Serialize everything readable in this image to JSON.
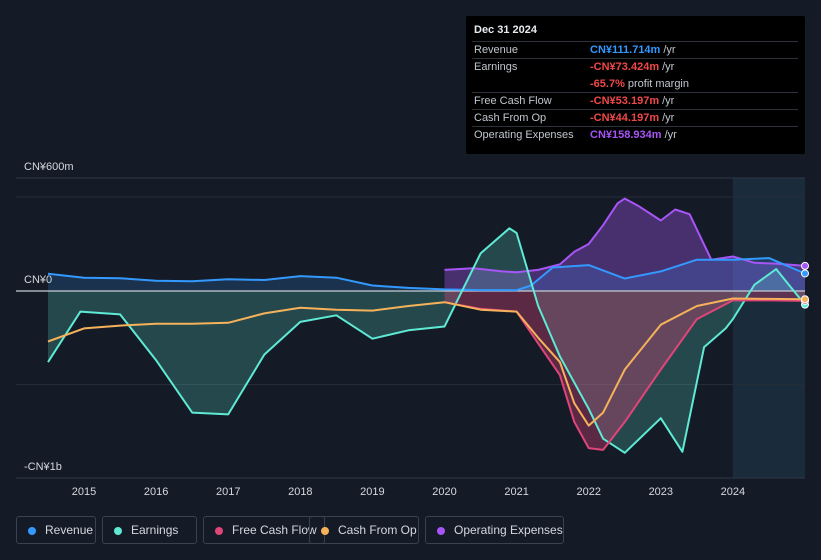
{
  "tooltip": {
    "date": "Dec 31 2024",
    "rows": [
      {
        "label": "Revenue",
        "value": "CN¥111.714m",
        "unit": "/yr",
        "color": "#3399ff"
      },
      {
        "label": "Earnings",
        "value": "-CN¥73.424m",
        "unit": "/yr",
        "color": "#f04848"
      },
      {
        "label": "",
        "value": "-65.7%",
        "unit": "profit margin",
        "color": "#f04848"
      },
      {
        "label": "Free Cash Flow",
        "value": "-CN¥53.197m",
        "unit": "/yr",
        "color": "#f04848"
      },
      {
        "label": "Cash From Op",
        "value": "-CN¥44.197m",
        "unit": "/yr",
        "color": "#f04848"
      },
      {
        "label": "Operating Expenses",
        "value": "CN¥158.934m",
        "unit": "/yr",
        "color": "#a855f7"
      }
    ]
  },
  "legend": [
    {
      "label": "Revenue",
      "color": "#3399ff"
    },
    {
      "label": "Earnings",
      "color": "#5eead4"
    },
    {
      "label": "Free Cash Flow",
      "color": "#e0457a"
    },
    {
      "label": "Cash From Op",
      "color": "#f5b25b"
    },
    {
      "label": "Operating Expenses",
      "color": "#a855f7"
    }
  ],
  "chart_data": {
    "type": "area",
    "title": "",
    "xlabel": "",
    "ylabel": "",
    "unit": "CN¥m",
    "y_axis_labels": {
      "top": "CN¥600m",
      "zero": "CN¥0",
      "bottom": "-CN¥1b"
    },
    "ylim": [
      -1000,
      600
    ],
    "xlim": [
      2014.5,
      2025.0
    ],
    "x_ticks": [
      2015,
      2016,
      2017,
      2018,
      2019,
      2020,
      2021,
      2022,
      2023,
      2024
    ],
    "x_tick_labels": [
      "2015",
      "2016",
      "2017",
      "2018",
      "2019",
      "2020",
      "2021",
      "2022",
      "2023",
      "2024"
    ],
    "highlight_from": 2024.0,
    "series": [
      {
        "name": "Operating Expenses",
        "color": "#a855f7",
        "x": [
          2020.0,
          2020.4,
          2020.8,
          2021.0,
          2021.3,
          2021.6,
          2021.8,
          2022.0,
          2022.2,
          2022.4,
          2022.5,
          2022.7,
          2023.0,
          2023.2,
          2023.4,
          2023.7,
          2024.0,
          2024.3,
          2024.6,
          2025.0
        ],
        "values": [
          135,
          145,
          125,
          120,
          135,
          170,
          250,
          300,
          420,
          560,
          590,
          540,
          450,
          520,
          490,
          200,
          220,
          180,
          175,
          160
        ]
      },
      {
        "name": "Revenue",
        "color": "#3399ff",
        "x": [
          2014.5,
          2015.0,
          2015.5,
          2016.0,
          2016.5,
          2017.0,
          2017.5,
          2018.0,
          2018.5,
          2019.0,
          2019.5,
          2020.0,
          2020.5,
          2021.0,
          2021.2,
          2021.5,
          2022.0,
          2022.5,
          2023.0,
          2023.5,
          2024.0,
          2024.5,
          2025.0
        ],
        "values": [
          110,
          85,
          82,
          65,
          62,
          75,
          70,
          95,
          85,
          35,
          20,
          10,
          6,
          5,
          35,
          150,
          165,
          80,
          125,
          200,
          200,
          210,
          112
        ]
      },
      {
        "name": "Earnings",
        "color": "#5eead4",
        "x": [
          2014.5,
          2014.95,
          2015.5,
          2016.0,
          2016.5,
          2017.0,
          2017.5,
          2018.0,
          2018.5,
          2019.0,
          2019.5,
          2020.0,
          2020.5,
          2020.9,
          2021.0,
          2021.3,
          2021.6,
          2021.8,
          2022.0,
          2022.2,
          2022.5,
          2023.0,
          2023.3,
          2023.6,
          2023.9,
          2024.0,
          2024.3,
          2024.6,
          2025.0
        ],
        "values": [
          -380,
          -110,
          -125,
          -370,
          -650,
          -660,
          -340,
          -165,
          -130,
          -255,
          -210,
          -190,
          240,
          400,
          370,
          -80,
          -350,
          -490,
          -630,
          -790,
          -865,
          -680,
          -860,
          -300,
          -200,
          -150,
          40,
          140,
          -73
        ]
      },
      {
        "name": "Free Cash Flow",
        "color": "#e0457a",
        "x": [
          2020.0,
          2020.5,
          2021.0,
          2021.3,
          2021.6,
          2021.8,
          2022.0,
          2022.2,
          2022.5,
          2023.0,
          2023.5,
          2024.0,
          2024.5,
          2025.0
        ],
        "values": [
          -60,
          -95,
          -110,
          -280,
          -450,
          -700,
          -840,
          -850,
          -700,
          -420,
          -150,
          -50,
          -50,
          -53
        ]
      },
      {
        "name": "Cash From Op",
        "color": "#f5b25b",
        "x": [
          2014.5,
          2015.0,
          2015.5,
          2016.0,
          2016.5,
          2017.0,
          2017.5,
          2018.0,
          2018.5,
          2019.0,
          2019.5,
          2020.0,
          2020.5,
          2021.0,
          2021.3,
          2021.6,
          2021.8,
          2022.0,
          2022.2,
          2022.5,
          2023.0,
          2023.5,
          2024.0,
          2024.5,
          2025.0
        ],
        "values": [
          -270,
          -200,
          -185,
          -175,
          -175,
          -170,
          -120,
          -90,
          -100,
          -105,
          -80,
          -60,
          -100,
          -110,
          -250,
          -380,
          -600,
          -720,
          -650,
          -420,
          -180,
          -80,
          -40,
          -42,
          -44
        ]
      }
    ]
  }
}
